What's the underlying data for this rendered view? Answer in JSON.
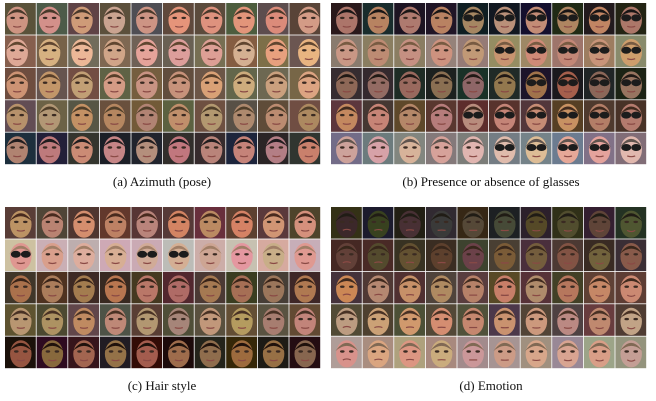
{
  "panels": [
    {
      "caption": "(a) Azimuth (pose)"
    },
    {
      "caption": "(b) Presence or absence of glasses"
    },
    {
      "caption": "(c) Hair style"
    },
    {
      "caption": "(d) Emotion"
    }
  ]
}
